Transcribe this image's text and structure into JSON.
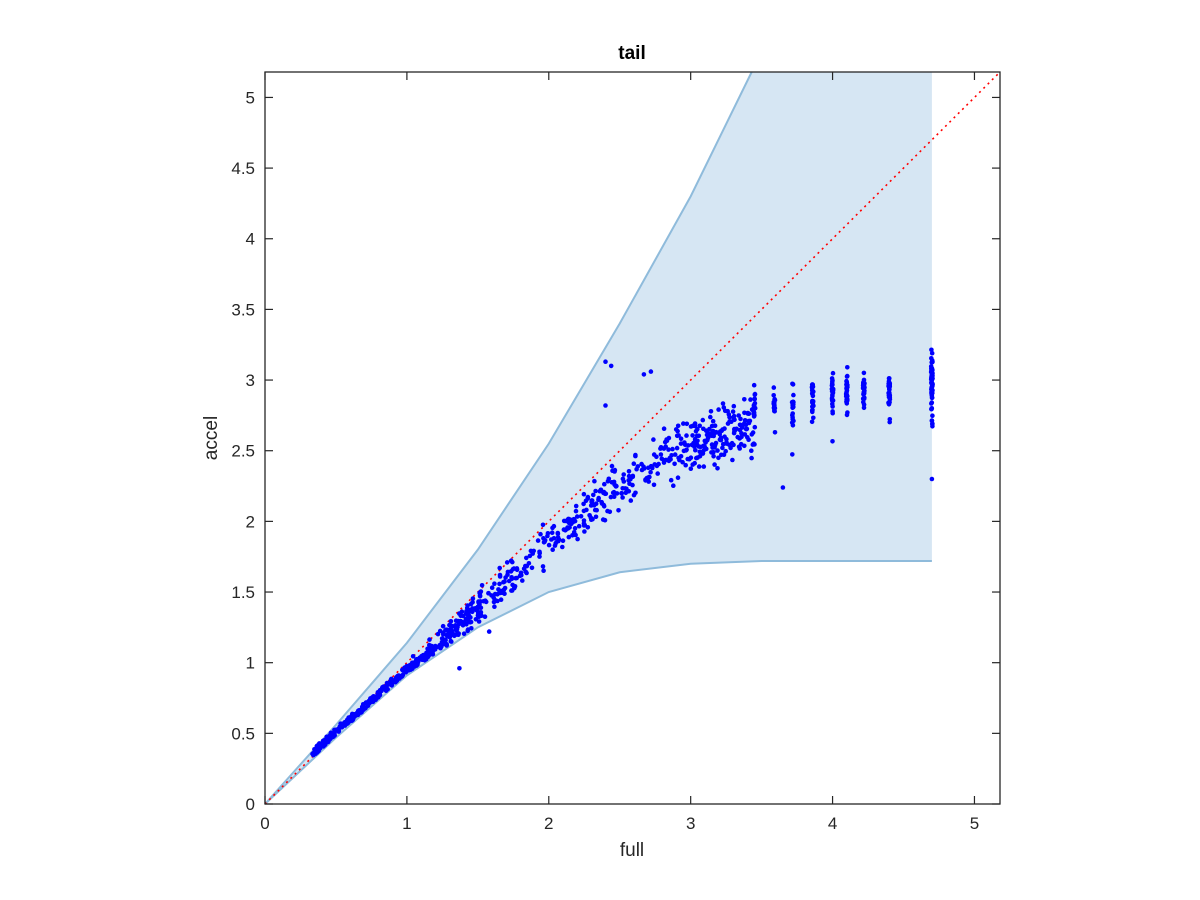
{
  "chart_data": {
    "type": "scatter",
    "title": "tail",
    "xlabel": "full",
    "ylabel": "accel",
    "xlim": [
      0,
      5.18
    ],
    "ylim": [
      0,
      5.18
    ],
    "xticks": [
      "0",
      "1",
      "2",
      "3",
      "4",
      "5"
    ],
    "yticks": [
      "0",
      "0.5",
      "1",
      "1.5",
      "2",
      "2.5",
      "3",
      "3.5",
      "4",
      "4.5",
      "5"
    ],
    "grid": false,
    "legend": "none",
    "colors": {
      "points": "#0000ff",
      "band_fill": "#d6e6f3",
      "band_edge": "#8fbbdb",
      "reference": "#ff0000",
      "axes": "#262626"
    },
    "reference_line": {
      "style": "dotted",
      "from": [
        0,
        0
      ],
      "to": [
        5.18,
        5.18
      ]
    },
    "band": {
      "x_max": 4.7,
      "upper": [
        [
          0,
          0
        ],
        [
          0.5,
          0.56
        ],
        [
          1,
          1.14
        ],
        [
          1.5,
          1.8
        ],
        [
          2,
          2.55
        ],
        [
          2.5,
          3.4
        ],
        [
          3,
          4.3
        ],
        [
          3.43,
          5.18
        ]
      ],
      "lower": [
        [
          0,
          0
        ],
        [
          0.5,
          0.47
        ],
        [
          1,
          0.91
        ],
        [
          1.5,
          1.25
        ],
        [
          2,
          1.5
        ],
        [
          2.5,
          1.64
        ],
        [
          3,
          1.7
        ],
        [
          3.5,
          1.72
        ],
        [
          4,
          1.72
        ],
        [
          4.7,
          1.72
        ]
      ]
    },
    "scatter": {
      "series_count": 1,
      "trend": [
        [
          0.35,
          0.34
        ],
        [
          0.6,
          0.56
        ],
        [
          1,
          0.92
        ],
        [
          1.5,
          1.38
        ],
        [
          2,
          1.85
        ],
        [
          2.5,
          2.25
        ],
        [
          3,
          2.55
        ],
        [
          3.5,
          2.7
        ],
        [
          4,
          2.8
        ],
        [
          4.7,
          2.95
        ]
      ],
      "highlighted_points": [
        [
          2.4,
          3.13
        ],
        [
          2.44,
          3.1
        ],
        [
          2.67,
          3.04
        ],
        [
          2.72,
          3.06
        ],
        [
          2.4,
          2.82
        ],
        [
          1.37,
          0.96
        ],
        [
          1.58,
          1.22
        ],
        [
          3.65,
          2.24
        ],
        [
          4.7,
          2.3
        ]
      ],
      "vertical_clusters": [
        {
          "x": 3.45,
          "y_min": 2.5,
          "y_max": 3.0
        },
        {
          "x": 3.59,
          "y_min": 2.55,
          "y_max": 3.05
        },
        {
          "x": 3.72,
          "y_min": 2.4,
          "y_max": 3.05
        },
        {
          "x": 3.86,
          "y_min": 2.55,
          "y_max": 3.08
        },
        {
          "x": 4.0,
          "y_min": 2.55,
          "y_max": 3.1
        },
        {
          "x": 4.1,
          "y_min": 2.65,
          "y_max": 3.1
        },
        {
          "x": 4.22,
          "y_min": 2.65,
          "y_max": 3.12
        },
        {
          "x": 4.4,
          "y_min": 2.65,
          "y_max": 3.12
        },
        {
          "x": 4.7,
          "y_min": 2.65,
          "y_max": 3.25
        }
      ]
    }
  }
}
